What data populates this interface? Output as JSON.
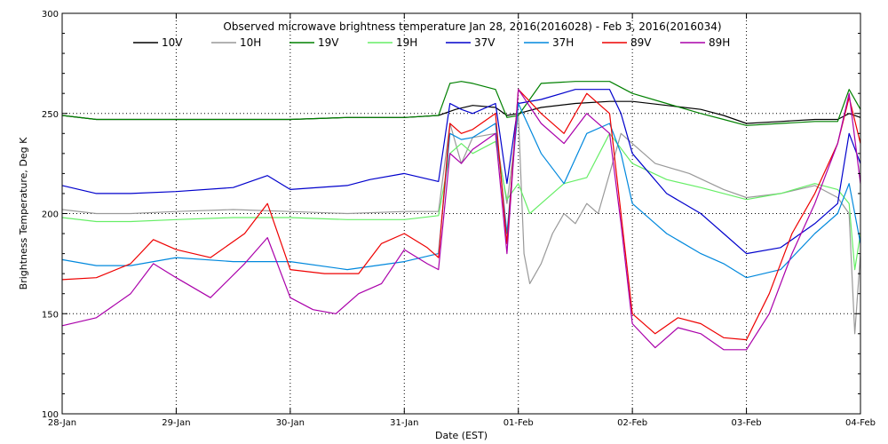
{
  "chart_data": {
    "type": "line",
    "title": "Observed microwave brightness temperature Jan 28, 2016(2016028) - Feb  3, 2016(2016034)",
    "xlabel": "Date (EST)",
    "ylabel": "Brightness Temperature, Deg K",
    "ylim": [
      100,
      300
    ],
    "xlim": [
      0,
      7
    ],
    "yticks": [
      100,
      150,
      200,
      250,
      300
    ],
    "xticks": [
      {
        "value": 0,
        "label": "28-Jan"
      },
      {
        "value": 1,
        "label": "29-Jan"
      },
      {
        "value": 2,
        "label": "30-Jan"
      },
      {
        "value": 3,
        "label": "31-Jan"
      },
      {
        "value": 4,
        "label": "01-Feb"
      },
      {
        "value": 5,
        "label": "02-Feb"
      },
      {
        "value": 6,
        "label": "03-Feb"
      },
      {
        "value": 7,
        "label": "04-Feb"
      }
    ],
    "grid": true,
    "legend_position": "top",
    "series": [
      {
        "name": "10V",
        "color": "#000000",
        "x": [
          0,
          0.3,
          0.6,
          1,
          1.5,
          2,
          2.5,
          3,
          3.3,
          3.45,
          3.6,
          3.8,
          3.9,
          4.0,
          4.2,
          4.5,
          4.8,
          5.0,
          5.3,
          5.6,
          5.8,
          6.0,
          6.3,
          6.6,
          6.8,
          6.9,
          7
        ],
        "y": [
          249,
          247,
          247,
          247,
          247,
          247,
          248,
          248,
          249,
          252,
          254,
          253,
          249,
          250,
          253,
          255,
          256,
          256,
          254,
          252,
          249,
          245,
          246,
          247,
          247,
          250,
          248
        ]
      },
      {
        "name": "10H",
        "color": "#999999",
        "x": [
          0,
          0.3,
          0.6,
          1,
          1.5,
          2,
          2.5,
          3,
          3.3,
          3.4,
          3.5,
          3.6,
          3.8,
          3.9,
          4.0,
          4.05,
          4.1,
          4.2,
          4.3,
          4.4,
          4.5,
          4.6,
          4.7,
          4.8,
          4.9,
          5.0,
          5.2,
          5.5,
          5.8,
          6.0,
          6.3,
          6.6,
          6.8,
          6.9,
          6.95,
          7
        ],
        "y": [
          202,
          200,
          200,
          201,
          202,
          201,
          200,
          201,
          201,
          245,
          225,
          238,
          240,
          205,
          250,
          180,
          165,
          175,
          190,
          200,
          195,
          205,
          200,
          220,
          240,
          235,
          225,
          220,
          212,
          208,
          210,
          214,
          208,
          200,
          140,
          180
        ]
      },
      {
        "name": "19V",
        "color": "#008000",
        "x": [
          0,
          0.3,
          0.6,
          1,
          1.5,
          2,
          2.5,
          3,
          3.3,
          3.4,
          3.5,
          3.6,
          3.8,
          3.9,
          4.0,
          4.2,
          4.5,
          4.8,
          5.0,
          5.3,
          5.6,
          5.8,
          6.0,
          6.3,
          6.6,
          6.8,
          6.9,
          7
        ],
        "y": [
          249,
          247,
          247,
          247,
          247,
          247,
          248,
          248,
          249,
          265,
          266,
          265,
          262,
          248,
          249,
          265,
          266,
          266,
          260,
          255,
          250,
          247,
          244,
          245,
          246,
          246,
          262,
          252
        ]
      },
      {
        "name": "19H",
        "color": "#66ee66",
        "x": [
          0,
          0.3,
          0.6,
          1,
          1.5,
          2,
          2.5,
          3,
          3.3,
          3.4,
          3.5,
          3.6,
          3.8,
          3.9,
          4.0,
          4.1,
          4.2,
          4.4,
          4.6,
          4.8,
          5.0,
          5.3,
          5.6,
          5.8,
          6.0,
          6.3,
          6.6,
          6.8,
          6.9,
          6.95,
          7
        ],
        "y": [
          198,
          196,
          196,
          197,
          198,
          198,
          197,
          197,
          199,
          230,
          235,
          230,
          236,
          207,
          215,
          200,
          205,
          215,
          218,
          240,
          225,
          217,
          213,
          210,
          207,
          210,
          215,
          212,
          205,
          172,
          190
        ]
      },
      {
        "name": "37V",
        "color": "#0000cc",
        "x": [
          0,
          0.3,
          0.6,
          1,
          1.5,
          1.8,
          2,
          2.5,
          2.7,
          3,
          3.3,
          3.4,
          3.5,
          3.6,
          3.8,
          3.9,
          4.0,
          4.2,
          4.5,
          4.8,
          4.9,
          5.0,
          5.3,
          5.6,
          5.8,
          6.0,
          6.3,
          6.6,
          6.8,
          6.9,
          7
        ],
        "y": [
          214,
          210,
          210,
          211,
          213,
          219,
          212,
          214,
          217,
          220,
          216,
          255,
          252,
          250,
          255,
          215,
          255,
          257,
          262,
          262,
          250,
          230,
          210,
          200,
          190,
          180,
          183,
          195,
          205,
          240,
          225
        ]
      },
      {
        "name": "37H",
        "color": "#0088dd",
        "x": [
          0,
          0.3,
          0.6,
          1,
          1.5,
          2,
          2.5,
          3,
          3.3,
          3.4,
          3.5,
          3.6,
          3.8,
          3.9,
          4.0,
          4.2,
          4.4,
          4.6,
          4.8,
          4.9,
          5.0,
          5.3,
          5.6,
          5.8,
          6.0,
          6.3,
          6.6,
          6.8,
          6.9,
          7
        ],
        "y": [
          177,
          174,
          174,
          178,
          176,
          176,
          172,
          176,
          180,
          240,
          237,
          238,
          245,
          190,
          255,
          230,
          215,
          240,
          245,
          230,
          205,
          190,
          180,
          175,
          168,
          172,
          190,
          200,
          215,
          185
        ]
      },
      {
        "name": "89V",
        "color": "#ee0000",
        "x": [
          0,
          0.3,
          0.6,
          0.8,
          1,
          1.3,
          1.6,
          1.8,
          2,
          2.3,
          2.6,
          2.8,
          3,
          3.2,
          3.3,
          3.4,
          3.5,
          3.6,
          3.8,
          3.9,
          4.0,
          4.2,
          4.4,
          4.6,
          4.8,
          4.9,
          5.0,
          5.2,
          5.4,
          5.6,
          5.8,
          6.0,
          6.2,
          6.4,
          6.6,
          6.8,
          6.9,
          7
        ],
        "y": [
          167,
          168,
          175,
          187,
          182,
          178,
          190,
          205,
          172,
          170,
          170,
          185,
          190,
          183,
          178,
          245,
          240,
          242,
          250,
          185,
          262,
          250,
          240,
          260,
          250,
          200,
          150,
          140,
          148,
          145,
          138,
          137,
          160,
          190,
          210,
          235,
          258,
          235
        ]
      },
      {
        "name": "89H",
        "color": "#aa00aa",
        "x": [
          0,
          0.3,
          0.6,
          0.8,
          1,
          1.3,
          1.6,
          1.8,
          2,
          2.2,
          2.4,
          2.6,
          2.8,
          3,
          3.2,
          3.3,
          3.4,
          3.5,
          3.6,
          3.8,
          3.9,
          4.0,
          4.2,
          4.4,
          4.6,
          4.8,
          4.9,
          5.0,
          5.2,
          5.4,
          5.6,
          5.8,
          6.0,
          6.2,
          6.4,
          6.6,
          6.8,
          6.9,
          7
        ],
        "y": [
          144,
          148,
          160,
          175,
          168,
          158,
          175,
          188,
          158,
          152,
          150,
          160,
          165,
          182,
          175,
          172,
          230,
          225,
          232,
          240,
          180,
          262,
          245,
          235,
          250,
          240,
          195,
          145,
          133,
          143,
          140,
          132,
          132,
          150,
          180,
          205,
          235,
          260,
          215
        ]
      }
    ]
  }
}
